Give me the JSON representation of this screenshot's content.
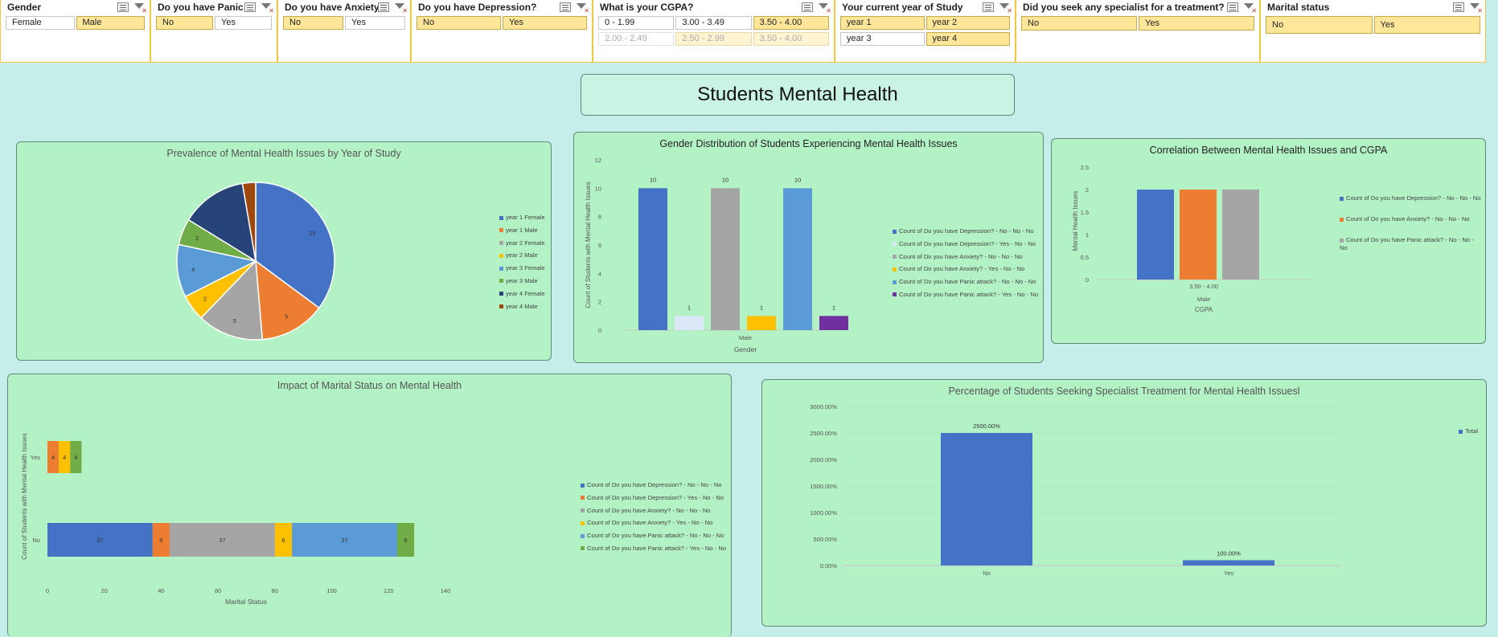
{
  "slicers": [
    {
      "title": "Gender",
      "items": [
        {
          "label": "Female",
          "selected": false
        },
        {
          "label": "Male",
          "selected": true
        }
      ]
    },
    {
      "title": "Do you have Panic ...",
      "items": [
        {
          "label": "No",
          "selected": true
        },
        {
          "label": "Yes",
          "selected": false
        }
      ]
    },
    {
      "title": "Do you have Anxiety?",
      "items": [
        {
          "label": "No",
          "selected": true
        },
        {
          "label": "Yes",
          "selected": false
        }
      ]
    },
    {
      "title": "Do you have Depression?",
      "items": [
        {
          "label": "No",
          "selected": true
        },
        {
          "label": "Yes",
          "selected": true
        }
      ]
    },
    {
      "title": "What is your CGPA?",
      "items": [
        {
          "label": "0 - 1.99",
          "selected": false
        },
        {
          "label": "3.00 - 3.49",
          "selected": false
        },
        {
          "label": "3.50 - 4.00",
          "selected": true
        },
        {
          "label": "2.00 - 2.49",
          "selected": false,
          "dim": true
        },
        {
          "label": "2.50 - 2.99",
          "selected": true,
          "dim": true
        },
        {
          "label": "3.50 - 4.00",
          "selected": true,
          "dim": true
        }
      ]
    },
    {
      "title": "Your current year of Study",
      "items": [
        {
          "label": "year 1",
          "selected": true
        },
        {
          "label": "year 2",
          "selected": true
        },
        {
          "label": "year 3",
          "selected": false
        },
        {
          "label": "year 4",
          "selected": true
        }
      ]
    },
    {
      "title": "Did you seek any specialist for a treatment?",
      "items": [
        {
          "label": "No",
          "selected": true
        },
        {
          "label": "Yes",
          "selected": true
        }
      ]
    },
    {
      "title": "Marital status",
      "items": [
        {
          "label": "No",
          "selected": true
        },
        {
          "label": "Yes",
          "selected": true
        }
      ]
    }
  ],
  "dashboard_title": "Students Mental Health",
  "colors": {
    "blue": "#4472c4",
    "orange": "#ed7d31",
    "gray": "#a5a5a5",
    "gold": "#ffc000",
    "lightblue": "#5b9bd5",
    "green": "#70ad47",
    "navy": "#264478",
    "darkred": "#9e480e",
    "paleblue": "#dbe8f8",
    "purple": "#7030a0"
  },
  "chart_data": [
    {
      "type": "pie",
      "title": "Prevalence of Mental Health Issues by Year of Study",
      "labels": [
        "year 1 Female",
        "year 1 Male",
        "year 2 Female",
        "year 2 Male",
        "year 3 Female",
        "year 3 Male",
        "year 4 Female",
        "year 4 Male"
      ],
      "values": [
        13,
        5,
        5,
        2,
        4,
        2,
        5,
        1
      ],
      "data_labels": [
        "13",
        "5",
        "5",
        "2",
        "4",
        "2",
        "",
        ""
      ],
      "colors": [
        "#4472c4",
        "#ed7d31",
        "#a5a5a5",
        "#ffc000",
        "#5b9bd5",
        "#70ad47",
        "#264478",
        "#9e480e"
      ],
      "legend": "right"
    },
    {
      "type": "bar",
      "title": "Gender Distribution of Students Experiencing Mental Health Issues",
      "categories": [
        "Male"
      ],
      "series": [
        {
          "name": "Count of Do you have Depression? - No - No - No",
          "values": [
            10
          ],
          "color": "#4472c4"
        },
        {
          "name": "Count of Do you have Depression? - Yes - No - No",
          "values": [
            1
          ],
          "color": "#dbe8f8"
        },
        {
          "name": "Count of Do you have Anxiety? - No - No - No",
          "values": [
            10
          ],
          "color": "#a5a5a5"
        },
        {
          "name": "Count of Do you have Anxiety? - Yes - No - No",
          "values": [
            1
          ],
          "color": "#ffc000"
        },
        {
          "name": "Count of Do you have Panic attack? - No - No - No",
          "values": [
            10
          ],
          "color": "#5b9bd5"
        },
        {
          "name": "Count of Do you have Panic attack? - Yes - No - No",
          "values": [
            1
          ],
          "color": "#7030a0"
        }
      ],
      "xlabel": "Gender",
      "ylabel": "Count of Students with Mental Health Issues",
      "ylim": [
        0,
        12
      ],
      "yticks": [
        "0",
        "2",
        "4",
        "6",
        "8",
        "10",
        "12"
      ],
      "legend": "right"
    },
    {
      "type": "bar",
      "title": "Correlation Between Mental Health Issues and CGPA",
      "categories": [
        "3.50 - 4.00"
      ],
      "outer_category": "Male",
      "series": [
        {
          "name": "Count of Do you have Depression? - No - No - No",
          "values": [
            2
          ],
          "color": "#4472c4"
        },
        {
          "name": "Count of Do you have Anxiety? - No - No - No",
          "values": [
            2
          ],
          "color": "#ed7d31"
        },
        {
          "name": "Count of Do you have Panic attack? - No - No - No",
          "values": [
            2
          ],
          "color": "#a5a5a5"
        }
      ],
      "xlabel": "CGPA",
      "ylabel": "Mental Health Issues",
      "ylim": [
        0,
        2.5
      ],
      "yticks": [
        "0",
        "0.5",
        "1",
        "1.5",
        "2",
        "2.5"
      ],
      "legend": "right"
    },
    {
      "type": "bar",
      "orientation": "horizontal",
      "stacked": true,
      "title": "Impact of Marital Status on Mental Health",
      "categories": [
        "No",
        "Yes"
      ],
      "series": [
        {
          "name": "Count of Do you have Depression? - No - No - No",
          "values": [
            37,
            0
          ],
          "labels": [
            "37",
            ""
          ],
          "color": "#4472c4"
        },
        {
          "name": "Count of Do you have Depression? - Yes - No - No",
          "values": [
            6,
            4
          ],
          "labels": [
            "6",
            "4"
          ],
          "color": "#ed7d31"
        },
        {
          "name": "Count of Do you have Anxiety? - No - No - No",
          "values": [
            37,
            0
          ],
          "labels": [
            "37",
            ""
          ],
          "color": "#a5a5a5"
        },
        {
          "name": "Count of Do you have Anxiety? - Yes - No - No",
          "values": [
            6,
            4
          ],
          "labels": [
            "6",
            "4"
          ],
          "color": "#ffc000"
        },
        {
          "name": "Count of Do you have Panic attack? - No - No - No",
          "values": [
            37,
            0
          ],
          "labels": [
            "37",
            ""
          ],
          "color": "#5b9bd5"
        },
        {
          "name": "Count of Do you have Panic attack? - Yes - No - No",
          "values": [
            6,
            4
          ],
          "labels": [
            "6",
            "4"
          ],
          "color": "#70ad47"
        }
      ],
      "xlabel": "Marital Status",
      "ylabel": "Count of Students with Mental Health Issues",
      "xlim": [
        0,
        140
      ],
      "xticks": [
        "0",
        "20",
        "40",
        "60",
        "80",
        "100",
        "120",
        "140"
      ],
      "legend": "right"
    },
    {
      "type": "bar",
      "title": "Percentage of Students Seeking Specialist Treatment for Mental Health Issuesl",
      "categories": [
        "No",
        "Yes"
      ],
      "series": [
        {
          "name": "Total",
          "values": [
            2500,
            100
          ],
          "labels": [
            "2500.00%",
            "100.00%"
          ],
          "color": "#4472c4"
        }
      ],
      "ylim": [
        0,
        3000
      ],
      "yticks": [
        "0.00%",
        "500.00%",
        "1000.00%",
        "1500.00%",
        "2000.00%",
        "2500.00%",
        "3000.00%"
      ],
      "legend": "right"
    }
  ]
}
